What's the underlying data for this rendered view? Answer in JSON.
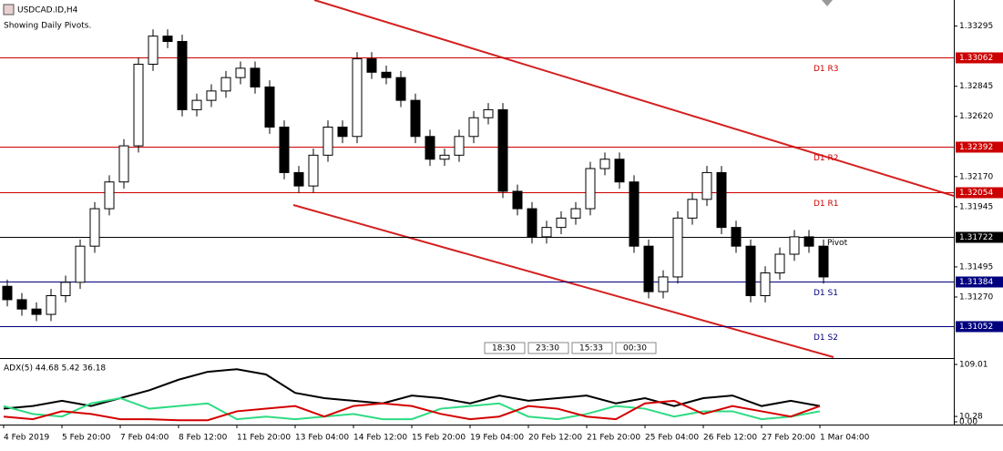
{
  "chart_data": [
    {
      "type": "candlestick",
      "title": "USDCAD.ID,H4",
      "subtitle": "Showing Daily Pivots.",
      "up_color": "#ffffff",
      "down_color": "#000000",
      "categories": [
        "4 Feb 2019",
        null,
        null,
        null,
        "5 Feb 20:00",
        null,
        null,
        null,
        "7 Feb 04:00",
        null,
        null,
        null,
        "8 Feb 12:00",
        null,
        null,
        null,
        "11 Feb 20:00",
        null,
        null,
        null,
        "13 Feb 04:00",
        null,
        null,
        null,
        "14 Feb 12:00",
        null,
        null,
        null,
        "15 Feb 20:00",
        null,
        null,
        null,
        "19 Feb 04:00",
        null,
        null,
        null,
        "20 Feb 12:00",
        null,
        null,
        null,
        "21 Feb 20:00",
        null,
        null,
        null,
        "25 Feb 04:00",
        null,
        null,
        null,
        "26 Feb 12:00",
        null,
        null,
        null,
        "27 Feb 20:00",
        null,
        null,
        null,
        "1 Mar 04:00"
      ],
      "open": [
        1.3135,
        1.3125,
        1.3118,
        1.3114,
        1.3128,
        1.3138,
        1.3165,
        1.3193,
        1.3213,
        1.324,
        1.3301,
        1.3322,
        1.3318,
        1.3267,
        1.3274,
        1.3281,
        1.3291,
        1.3298,
        1.3284,
        1.3254,
        1.322,
        1.321,
        1.3233,
        1.3254,
        1.3247,
        1.3305,
        1.3295,
        1.3291,
        1.3274,
        1.3247,
        1.323,
        1.3233,
        1.3247,
        1.3261,
        1.3267,
        1.3206,
        1.3193,
        1.3172,
        1.3179,
        1.3186,
        1.3193,
        1.3223,
        1.323,
        1.3213,
        1.3165,
        1.3131,
        1.3142,
        1.3186,
        1.32,
        1.322,
        1.3179,
        1.3165,
        1.3128,
        1.3145,
        1.3159,
        1.3172,
        1.3165
      ],
      "high": [
        1.314,
        1.313,
        1.3123,
        1.3133,
        1.3143,
        1.317,
        1.3198,
        1.3218,
        1.3245,
        1.3306,
        1.3327,
        1.3327,
        1.3323,
        1.3279,
        1.3286,
        1.3296,
        1.3303,
        1.3303,
        1.3289,
        1.3259,
        1.3225,
        1.3238,
        1.3259,
        1.3259,
        1.331,
        1.331,
        1.33,
        1.3296,
        1.3279,
        1.3252,
        1.3238,
        1.3252,
        1.3266,
        1.3272,
        1.3272,
        1.3211,
        1.3198,
        1.3184,
        1.3191,
        1.3198,
        1.3228,
        1.3235,
        1.3235,
        1.3218,
        1.317,
        1.3147,
        1.3191,
        1.3205,
        1.3225,
        1.3225,
        1.3184,
        1.317,
        1.315,
        1.3164,
        1.3177,
        1.3177,
        1.317
      ],
      "low": [
        1.312,
        1.3113,
        1.3109,
        1.3109,
        1.3123,
        1.3133,
        1.316,
        1.3188,
        1.3208,
        1.3235,
        1.3296,
        1.3313,
        1.3262,
        1.3262,
        1.3269,
        1.3276,
        1.3286,
        1.3279,
        1.3249,
        1.3215,
        1.3205,
        1.3205,
        1.3228,
        1.3242,
        1.3242,
        1.329,
        1.3286,
        1.3269,
        1.3242,
        1.3225,
        1.3225,
        1.3228,
        1.3242,
        1.3256,
        1.3201,
        1.3188,
        1.3167,
        1.3167,
        1.3174,
        1.3181,
        1.3188,
        1.3218,
        1.3208,
        1.316,
        1.3126,
        1.3126,
        1.3137,
        1.3181,
        1.3195,
        1.3174,
        1.316,
        1.3123,
        1.3123,
        1.314,
        1.3154,
        1.316,
        1.3137
      ],
      "close": [
        1.3125,
        1.3118,
        1.3114,
        1.3128,
        1.3138,
        1.3165,
        1.3193,
        1.3213,
        1.324,
        1.3301,
        1.3322,
        1.3318,
        1.3267,
        1.3274,
        1.3281,
        1.3291,
        1.3298,
        1.3284,
        1.3254,
        1.322,
        1.321,
        1.3233,
        1.3254,
        1.3247,
        1.3305,
        1.3295,
        1.3291,
        1.3274,
        1.3247,
        1.323,
        1.3233,
        1.3247,
        1.3261,
        1.3267,
        1.3206,
        1.3193,
        1.3172,
        1.3179,
        1.3186,
        1.3193,
        1.3223,
        1.323,
        1.3213,
        1.3165,
        1.3131,
        1.3142,
        1.3186,
        1.32,
        1.322,
        1.3179,
        1.3165,
        1.3128,
        1.3145,
        1.3159,
        1.3172,
        1.3165,
        1.3142
      ],
      "ylim": [
        1.30834,
        1.3349
      ],
      "yticks": [
        1.33295,
        1.32845,
        {
          "value": 1.3262,
          "label": "1.32620"
        },
        {
          "value": 1.3217,
          "label": "1.32170"
        },
        1.31945,
        1.31495,
        {
          "value": 1.3127,
          "label": "1.31270"
        }
      ],
      "levels": [
        {
          "label": "D1  R3",
          "value": 1.33062,
          "color": "#cc0000"
        },
        {
          "label": "D1  R2",
          "value": 1.32392,
          "color": "#cc0000"
        },
        {
          "label": "D1  R1",
          "value": 1.32054,
          "color": "#cc0000"
        },
        {
          "label": "Pivot",
          "value": 1.31722,
          "color": "#000000"
        },
        {
          "label": "D1  S1",
          "value": 1.31384,
          "color": "#00007f"
        },
        {
          "label": "D1  S2",
          "value": 1.31052,
          "color": "#00007f"
        }
      ],
      "buttons": [
        "18:30",
        "23:30",
        "15:33",
        "00:30"
      ]
    },
    {
      "type": "line",
      "title": "ADX(5) 44.68 5.42 36.18",
      "ylim": [
        0,
        109.01
      ],
      "yticks": [
        109.01,
        10.28,
        {
          "value": 0,
          "label": "0.00"
        }
      ],
      "series": [
        {
          "color": "#000000",
          "values": [
            25,
            30,
            40,
            30,
            45,
            60,
            80,
            95,
            100,
            90,
            55,
            45,
            40,
            35,
            50,
            45,
            35,
            50,
            40,
            45,
            50,
            35,
            45,
            30,
            45,
            50,
            30,
            40,
            30
          ]
        },
        {
          "color": "#2edb83",
          "values": [
            30,
            15,
            10,
            35,
            45,
            25,
            30,
            35,
            5,
            10,
            5,
            10,
            15,
            5,
            5,
            25,
            30,
            35,
            10,
            5,
            15,
            30,
            25,
            10,
            20,
            20,
            5,
            10,
            20
          ]
        },
        {
          "color": "#d40000",
          "values": [
            10,
            5,
            20,
            15,
            5,
            5,
            3,
            3,
            20,
            25,
            30,
            10,
            30,
            35,
            30,
            15,
            5,
            10,
            30,
            25,
            10,
            5,
            35,
            40,
            15,
            30,
            20,
            10,
            30
          ]
        }
      ]
    }
  ]
}
